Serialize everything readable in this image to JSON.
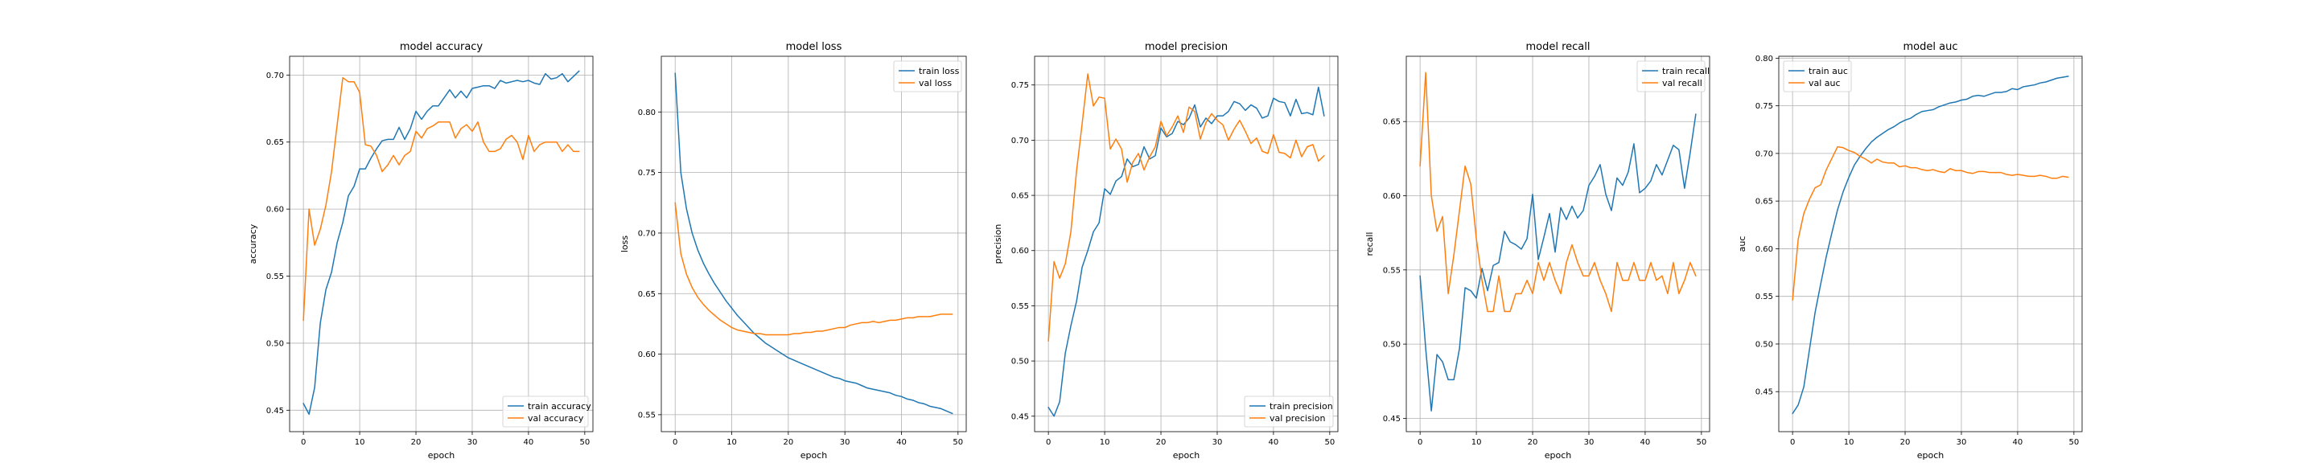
{
  "colors": {
    "train": "#1f77b4",
    "val": "#ff7f0e"
  },
  "chart_data": [
    {
      "type": "line",
      "title": "model accuracy",
      "xlabel": "epoch",
      "ylabel": "accuracy",
      "xlim": [
        -2.45,
        51.45
      ],
      "ylim": [
        0.434,
        0.714
      ],
      "xticks": [
        0,
        10,
        20,
        30,
        40,
        50
      ],
      "yticks": [
        0.45,
        0.5,
        0.55,
        0.6,
        0.65,
        0.7
      ],
      "ytick_labels": [
        "0.45",
        "0.50",
        "0.55",
        "0.60",
        "0.65",
        "0.70"
      ],
      "grid": true,
      "legend_loc": "lower-right",
      "series": [
        {
          "name": "train accuracy",
          "color": "#1f77b4",
          "values": [
            0.455,
            0.447,
            0.467,
            0.515,
            0.54,
            0.553,
            0.575,
            0.59,
            0.61,
            0.617,
            0.63,
            0.63,
            0.638,
            0.645,
            0.651,
            0.652,
            0.652,
            0.661,
            0.652,
            0.66,
            0.673,
            0.667,
            0.673,
            0.677,
            0.677,
            0.683,
            0.689,
            0.683,
            0.688,
            0.683,
            0.69,
            0.691,
            0.692,
            0.692,
            0.69,
            0.696,
            0.694,
            0.695,
            0.696,
            0.695,
            0.696,
            0.694,
            0.693,
            0.701,
            0.697,
            0.698,
            0.701,
            0.695,
            0.699,
            0.703
          ]
        },
        {
          "name": "val accuracy",
          "color": "#ff7f0e",
          "values": [
            0.517,
            0.6,
            0.573,
            0.585,
            0.603,
            0.628,
            0.663,
            0.698,
            0.695,
            0.695,
            0.687,
            0.648,
            0.647,
            0.64,
            0.628,
            0.633,
            0.64,
            0.633,
            0.64,
            0.643,
            0.658,
            0.653,
            0.66,
            0.662,
            0.665,
            0.665,
            0.665,
            0.653,
            0.66,
            0.663,
            0.658,
            0.665,
            0.65,
            0.643,
            0.643,
            0.645,
            0.652,
            0.655,
            0.65,
            0.637,
            0.655,
            0.643,
            0.648,
            0.65,
            0.65,
            0.65,
            0.643,
            0.648,
            0.643,
            0.643
          ]
        }
      ]
    },
    {
      "type": "line",
      "title": "model loss",
      "xlabel": "epoch",
      "ylabel": "loss",
      "xlim": [
        -2.45,
        51.45
      ],
      "ylim": [
        0.536,
        0.846
      ],
      "xticks": [
        0,
        10,
        20,
        30,
        40,
        50
      ],
      "yticks": [
        0.55,
        0.6,
        0.65,
        0.7,
        0.75,
        0.8
      ],
      "ytick_labels": [
        "0.55",
        "0.60",
        "0.65",
        "0.70",
        "0.75",
        "0.80"
      ],
      "grid": true,
      "legend_loc": "upper-right",
      "series": [
        {
          "name": "train loss",
          "color": "#1f77b4",
          "values": [
            0.832,
            0.75,
            0.72,
            0.7,
            0.686,
            0.675,
            0.666,
            0.658,
            0.651,
            0.644,
            0.638,
            0.632,
            0.627,
            0.622,
            0.617,
            0.613,
            0.609,
            0.606,
            0.603,
            0.6,
            0.597,
            0.595,
            0.593,
            0.591,
            0.589,
            0.587,
            0.585,
            0.583,
            0.581,
            0.58,
            0.578,
            0.577,
            0.576,
            0.574,
            0.572,
            0.571,
            0.57,
            0.569,
            0.568,
            0.566,
            0.565,
            0.563,
            0.562,
            0.56,
            0.559,
            0.557,
            0.556,
            0.555,
            0.553,
            0.551
          ]
        },
        {
          "name": "val loss",
          "color": "#ff7f0e",
          "values": [
            0.725,
            0.683,
            0.666,
            0.655,
            0.647,
            0.641,
            0.636,
            0.632,
            0.628,
            0.625,
            0.622,
            0.62,
            0.619,
            0.618,
            0.617,
            0.617,
            0.616,
            0.616,
            0.616,
            0.616,
            0.616,
            0.617,
            0.617,
            0.618,
            0.618,
            0.619,
            0.619,
            0.62,
            0.621,
            0.622,
            0.622,
            0.624,
            0.625,
            0.626,
            0.626,
            0.627,
            0.626,
            0.627,
            0.628,
            0.628,
            0.629,
            0.63,
            0.63,
            0.631,
            0.631,
            0.631,
            0.632,
            0.633,
            0.633,
            0.633
          ]
        }
      ]
    },
    {
      "type": "line",
      "title": "model precision",
      "xlabel": "epoch",
      "ylabel": "precision",
      "xlim": [
        -2.45,
        51.45
      ],
      "ylim": [
        0.436,
        0.776
      ],
      "xticks": [
        0,
        10,
        20,
        30,
        40,
        50
      ],
      "yticks": [
        0.45,
        0.5,
        0.55,
        0.6,
        0.65,
        0.7,
        0.75
      ],
      "ytick_labels": [
        "0.45",
        "0.50",
        "0.55",
        "0.60",
        "0.65",
        "0.70",
        "0.75"
      ],
      "grid": true,
      "legend_loc": "lower-right",
      "series": [
        {
          "name": "train precision",
          "color": "#1f77b4",
          "values": [
            0.458,
            0.45,
            0.463,
            0.507,
            0.532,
            0.554,
            0.585,
            0.6,
            0.617,
            0.625,
            0.656,
            0.651,
            0.663,
            0.667,
            0.683,
            0.676,
            0.678,
            0.694,
            0.683,
            0.686,
            0.711,
            0.703,
            0.706,
            0.717,
            0.714,
            0.72,
            0.732,
            0.712,
            0.72,
            0.715,
            0.722,
            0.722,
            0.726,
            0.735,
            0.733,
            0.727,
            0.732,
            0.729,
            0.72,
            0.722,
            0.738,
            0.735,
            0.734,
            0.722,
            0.737,
            0.724,
            0.725,
            0.723,
            0.748,
            0.722
          ]
        },
        {
          "name": "val precision",
          "color": "#ff7f0e",
          "values": [
            0.518,
            0.59,
            0.575,
            0.588,
            0.617,
            0.672,
            0.715,
            0.76,
            0.731,
            0.739,
            0.738,
            0.692,
            0.701,
            0.692,
            0.662,
            0.68,
            0.688,
            0.673,
            0.685,
            0.694,
            0.717,
            0.704,
            0.712,
            0.722,
            0.707,
            0.73,
            0.726,
            0.701,
            0.716,
            0.724,
            0.718,
            0.714,
            0.7,
            0.71,
            0.718,
            0.708,
            0.697,
            0.702,
            0.69,
            0.688,
            0.705,
            0.689,
            0.688,
            0.684,
            0.7,
            0.685,
            0.694,
            0.696,
            0.681,
            0.686
          ]
        }
      ]
    },
    {
      "type": "line",
      "title": "model recall",
      "xlabel": "epoch",
      "ylabel": "recall",
      "xlim": [
        -2.45,
        51.45
      ],
      "ylim": [
        0.441,
        0.694
      ],
      "xticks": [
        0,
        10,
        20,
        30,
        40,
        50
      ],
      "yticks": [
        0.45,
        0.5,
        0.55,
        0.6,
        0.65
      ],
      "ytick_labels": [
        "0.45",
        "0.50",
        "0.55",
        "0.60",
        "0.65"
      ],
      "grid": true,
      "legend_loc": "upper-right",
      "series": [
        {
          "name": "train recall",
          "color": "#1f77b4",
          "values": [
            0.546,
            0.497,
            0.455,
            0.493,
            0.488,
            0.476,
            0.476,
            0.497,
            0.538,
            0.536,
            0.531,
            0.551,
            0.536,
            0.553,
            0.555,
            0.576,
            0.569,
            0.567,
            0.564,
            0.571,
            0.601,
            0.557,
            0.572,
            0.588,
            0.562,
            0.592,
            0.584,
            0.593,
            0.585,
            0.59,
            0.607,
            0.613,
            0.621,
            0.601,
            0.59,
            0.612,
            0.607,
            0.616,
            0.635,
            0.602,
            0.605,
            0.61,
            0.621,
            0.614,
            0.624,
            0.634,
            0.631,
            0.605,
            0.629,
            0.655
          ]
        },
        {
          "name": "val recall",
          "color": "#ff7f0e",
          "values": [
            0.62,
            0.683,
            0.6,
            0.576,
            0.586,
            0.534,
            0.56,
            0.59,
            0.62,
            0.608,
            0.571,
            0.543,
            0.522,
            0.522,
            0.546,
            0.522,
            0.522,
            0.534,
            0.534,
            0.543,
            0.534,
            0.555,
            0.543,
            0.555,
            0.543,
            0.534,
            0.555,
            0.567,
            0.555,
            0.546,
            0.546,
            0.555,
            0.543,
            0.534,
            0.522,
            0.555,
            0.543,
            0.543,
            0.555,
            0.543,
            0.543,
            0.555,
            0.543,
            0.546,
            0.534,
            0.555,
            0.534,
            0.543,
            0.555,
            0.546
          ]
        }
      ]
    },
    {
      "type": "line",
      "title": "model auc",
      "xlabel": "epoch",
      "ylabel": "auc",
      "xlim": [
        -2.45,
        51.45
      ],
      "ylim": [
        0.408,
        0.802
      ],
      "xticks": [
        0,
        10,
        20,
        30,
        40,
        50
      ],
      "yticks": [
        0.45,
        0.5,
        0.55,
        0.6,
        0.65,
        0.7,
        0.75,
        0.8
      ],
      "ytick_labels": [
        "0.45",
        "0.50",
        "0.55",
        "0.60",
        "0.65",
        "0.70",
        "0.75",
        "0.80"
      ],
      "grid": true,
      "legend_loc": "upper-left",
      "series": [
        {
          "name": "train auc",
          "color": "#1f77b4",
          "values": [
            0.427,
            0.436,
            0.455,
            0.494,
            0.533,
            0.563,
            0.592,
            0.617,
            0.641,
            0.66,
            0.675,
            0.688,
            0.697,
            0.705,
            0.712,
            0.717,
            0.721,
            0.725,
            0.728,
            0.732,
            0.735,
            0.737,
            0.741,
            0.744,
            0.745,
            0.746,
            0.749,
            0.751,
            0.753,
            0.754,
            0.756,
            0.757,
            0.76,
            0.761,
            0.76,
            0.762,
            0.764,
            0.764,
            0.765,
            0.768,
            0.767,
            0.77,
            0.771,
            0.772,
            0.774,
            0.775,
            0.777,
            0.779,
            0.78,
            0.781
          ]
        },
        {
          "name": "val auc",
          "color": "#ff7f0e",
          "values": [
            0.546,
            0.61,
            0.637,
            0.652,
            0.664,
            0.667,
            0.683,
            0.695,
            0.707,
            0.706,
            0.703,
            0.701,
            0.697,
            0.694,
            0.69,
            0.694,
            0.691,
            0.69,
            0.69,
            0.686,
            0.687,
            0.685,
            0.685,
            0.683,
            0.682,
            0.683,
            0.681,
            0.68,
            0.684,
            0.682,
            0.682,
            0.68,
            0.679,
            0.681,
            0.681,
            0.68,
            0.68,
            0.68,
            0.678,
            0.677,
            0.678,
            0.677,
            0.676,
            0.676,
            0.677,
            0.676,
            0.674,
            0.674,
            0.676,
            0.675
          ]
        }
      ]
    }
  ]
}
